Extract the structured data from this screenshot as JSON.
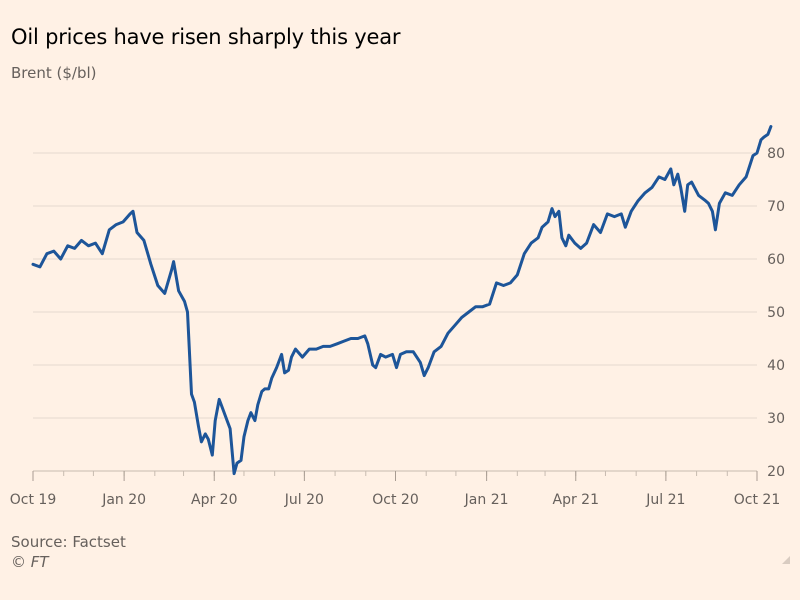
{
  "header": {
    "title": "Oil prices have risen sharply this year",
    "subtitle": "Brent ($/bl)"
  },
  "footer": {
    "source": "Source: Factset",
    "copyright": "© FT"
  },
  "colors": {
    "background": "#FFF1E5",
    "line": "#1D5599",
    "grid": "#E6D9CE",
    "text": "#66605C"
  },
  "chart_data": {
    "type": "line",
    "title": "Oil prices have risen sharply this year",
    "subtitle": "Brent ($/bl)",
    "xlabel": "",
    "ylabel": "",
    "ylim": [
      20,
      85
    ],
    "y_ticks": [
      20,
      30,
      40,
      50,
      60,
      70,
      80
    ],
    "x_ticks": [
      "Oct 19",
      "Jan 20",
      "Apr 20",
      "Jul 20",
      "Oct 20",
      "Jan 21",
      "Apr 21",
      "Jul 21",
      "Oct 21"
    ],
    "grid": true,
    "y_axis_position": "right",
    "series": [
      {
        "name": "",
        "color": "#1D5599",
        "points": [
          [
            "2019-10-01",
            59
          ],
          [
            "2019-10-08",
            58.5
          ],
          [
            "2019-10-15",
            61
          ],
          [
            "2019-10-22",
            61.5
          ],
          [
            "2019-10-29",
            60
          ],
          [
            "2019-11-05",
            62.5
          ],
          [
            "2019-11-12",
            62
          ],
          [
            "2019-11-19",
            63.5
          ],
          [
            "2019-11-26",
            62.5
          ],
          [
            "2019-12-03",
            63
          ],
          [
            "2019-12-10",
            61
          ],
          [
            "2019-12-17",
            65.5
          ],
          [
            "2019-12-24",
            66.5
          ],
          [
            "2019-12-31",
            67
          ],
          [
            "2020-01-07",
            68.5
          ],
          [
            "2020-01-10",
            69
          ],
          [
            "2020-01-14",
            65
          ],
          [
            "2020-01-21",
            63.5
          ],
          [
            "2020-01-28",
            59
          ],
          [
            "2020-02-04",
            55
          ],
          [
            "2020-02-11",
            53.5
          ],
          [
            "2020-02-18",
            58
          ],
          [
            "2020-02-20",
            59.5
          ],
          [
            "2020-02-25",
            54
          ],
          [
            "2020-03-02",
            52
          ],
          [
            "2020-03-05",
            50
          ],
          [
            "2020-03-09",
            34.5
          ],
          [
            "2020-03-12",
            33
          ],
          [
            "2020-03-16",
            28.5
          ],
          [
            "2020-03-19",
            25.5
          ],
          [
            "2020-03-23",
            27
          ],
          [
            "2020-03-26",
            26
          ],
          [
            "2020-03-30",
            23
          ],
          [
            "2020-04-02",
            29.5
          ],
          [
            "2020-04-06",
            33.5
          ],
          [
            "2020-04-09",
            32
          ],
          [
            "2020-04-14",
            29.5
          ],
          [
            "2020-04-17",
            28
          ],
          [
            "2020-04-21",
            19.5
          ],
          [
            "2020-04-24",
            21.5
          ],
          [
            "2020-04-28",
            22
          ],
          [
            "2020-05-01",
            26.5
          ],
          [
            "2020-05-05",
            29.5
          ],
          [
            "2020-05-08",
            31
          ],
          [
            "2020-05-12",
            29.5
          ],
          [
            "2020-05-15",
            32.5
          ],
          [
            "2020-05-19",
            35
          ],
          [
            "2020-05-22",
            35.5
          ],
          [
            "2020-05-26",
            35.5
          ],
          [
            "2020-05-29",
            37.5
          ],
          [
            "2020-06-03",
            39.5
          ],
          [
            "2020-06-08",
            42
          ],
          [
            "2020-06-11",
            38.5
          ],
          [
            "2020-06-15",
            39
          ],
          [
            "2020-06-18",
            41.5
          ],
          [
            "2020-06-22",
            43
          ],
          [
            "2020-06-29",
            41.5
          ],
          [
            "2020-07-06",
            43
          ],
          [
            "2020-07-13",
            43
          ],
          [
            "2020-07-20",
            43.5
          ],
          [
            "2020-07-27",
            43.5
          ],
          [
            "2020-08-03",
            44
          ],
          [
            "2020-08-10",
            44.5
          ],
          [
            "2020-08-17",
            45
          ],
          [
            "2020-08-24",
            45
          ],
          [
            "2020-08-31",
            45.5
          ],
          [
            "2020-09-03",
            44
          ],
          [
            "2020-09-08",
            40
          ],
          [
            "2020-09-11",
            39.5
          ],
          [
            "2020-09-16",
            42
          ],
          [
            "2020-09-21",
            41.5
          ],
          [
            "2020-09-28",
            42
          ],
          [
            "2020-10-02",
            39.5
          ],
          [
            "2020-10-06",
            42
          ],
          [
            "2020-10-12",
            42.5
          ],
          [
            "2020-10-19",
            42.5
          ],
          [
            "2020-10-26",
            40.5
          ],
          [
            "2020-10-30",
            38
          ],
          [
            "2020-11-03",
            39.5
          ],
          [
            "2020-11-09",
            42.5
          ],
          [
            "2020-11-16",
            43.5
          ],
          [
            "2020-11-23",
            46
          ],
          [
            "2020-11-30",
            47.5
          ],
          [
            "2020-12-07",
            49
          ],
          [
            "2020-12-14",
            50
          ],
          [
            "2020-12-21",
            51
          ],
          [
            "2020-12-28",
            51
          ],
          [
            "2021-01-04",
            51.5
          ],
          [
            "2021-01-11",
            55.5
          ],
          [
            "2021-01-18",
            55
          ],
          [
            "2021-01-25",
            55.5
          ],
          [
            "2021-02-01",
            57
          ],
          [
            "2021-02-08",
            61
          ],
          [
            "2021-02-15",
            63
          ],
          [
            "2021-02-22",
            64
          ],
          [
            "2021-02-26",
            66
          ],
          [
            "2021-03-04",
            67
          ],
          [
            "2021-03-08",
            69.5
          ],
          [
            "2021-03-11",
            68
          ],
          [
            "2021-03-15",
            69
          ],
          [
            "2021-03-18",
            64
          ],
          [
            "2021-03-22",
            62.5
          ],
          [
            "2021-03-25",
            64.5
          ],
          [
            "2021-03-31",
            63
          ],
          [
            "2021-04-06",
            62
          ],
          [
            "2021-04-12",
            63
          ],
          [
            "2021-04-19",
            66.5
          ],
          [
            "2021-04-26",
            65
          ],
          [
            "2021-05-03",
            68.5
          ],
          [
            "2021-05-10",
            68
          ],
          [
            "2021-05-17",
            68.5
          ],
          [
            "2021-05-21",
            66
          ],
          [
            "2021-05-27",
            69
          ],
          [
            "2021-06-03",
            71
          ],
          [
            "2021-06-10",
            72.5
          ],
          [
            "2021-06-17",
            73.5
          ],
          [
            "2021-06-24",
            75.5
          ],
          [
            "2021-06-30",
            75
          ],
          [
            "2021-07-06",
            77
          ],
          [
            "2021-07-09",
            74
          ],
          [
            "2021-07-13",
            76
          ],
          [
            "2021-07-16",
            73.5
          ],
          [
            "2021-07-20",
            69
          ],
          [
            "2021-07-23",
            74
          ],
          [
            "2021-07-27",
            74.5
          ],
          [
            "2021-08-03",
            72
          ],
          [
            "2021-08-10",
            71
          ],
          [
            "2021-08-13",
            70.5
          ],
          [
            "2021-08-17",
            69
          ],
          [
            "2021-08-20",
            65.5
          ],
          [
            "2021-08-24",
            70.5
          ],
          [
            "2021-08-30",
            72.5
          ],
          [
            "2021-09-06",
            72
          ],
          [
            "2021-09-13",
            74
          ],
          [
            "2021-09-20",
            75.5
          ],
          [
            "2021-09-27",
            79.5
          ],
          [
            "2021-10-01",
            80
          ],
          [
            "2021-10-05",
            82.5
          ],
          [
            "2021-10-08",
            83
          ],
          [
            "2021-10-12",
            83.5
          ],
          [
            "2021-10-15",
            85
          ]
        ]
      }
    ]
  }
}
